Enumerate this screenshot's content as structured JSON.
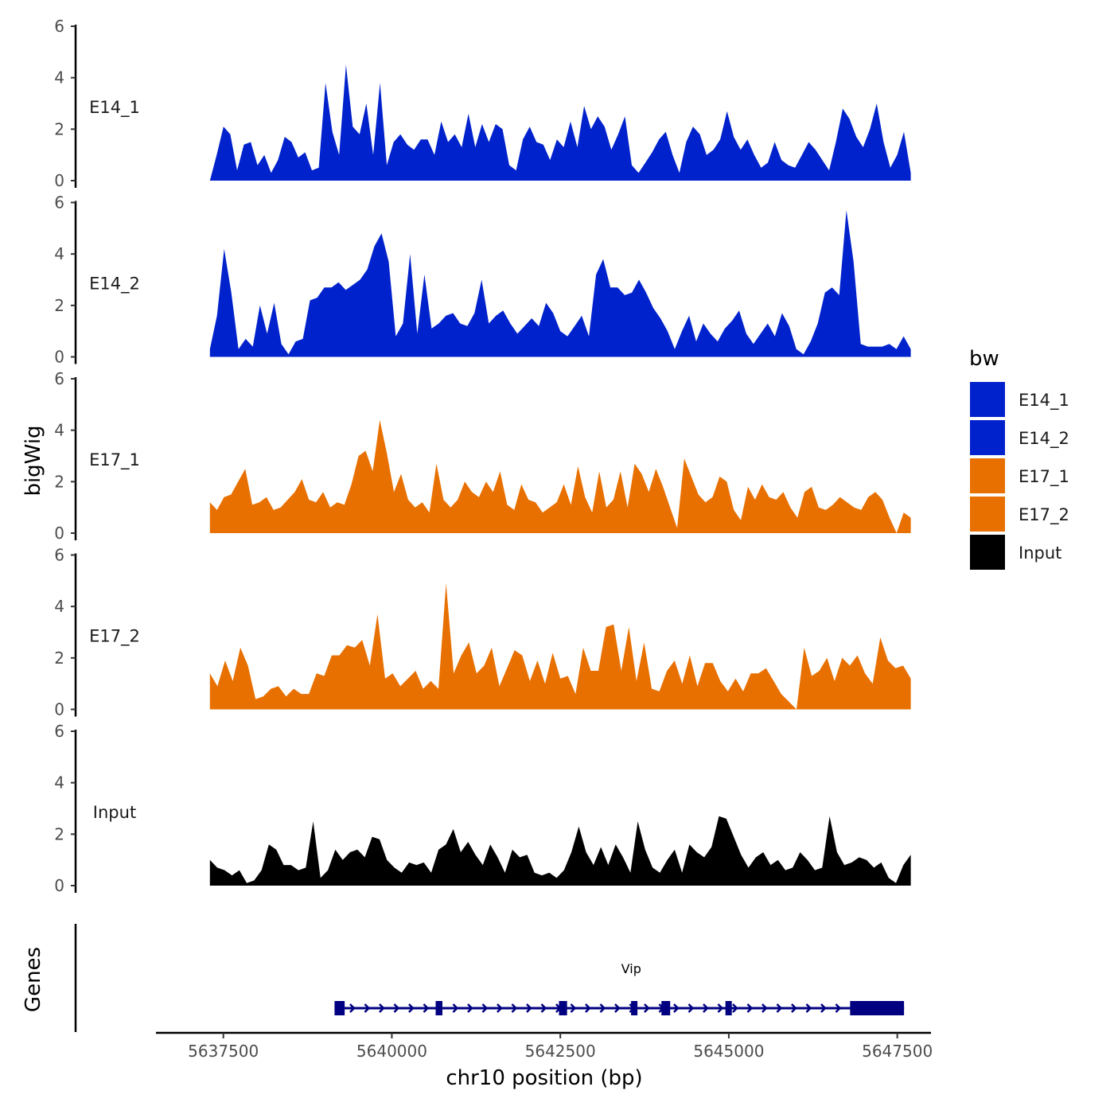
{
  "chart_data": {
    "type": "area",
    "chromosome": "chr10",
    "xlabel": "chr10 position (bp)",
    "xlim": [
      5636500,
      5648000
    ],
    "x_ticks": [
      5637500,
      5640000,
      5642500,
      5645000,
      5647500
    ],
    "x_tick_labels": [
      "5637500",
      "5640000",
      "5642500",
      "5645000",
      "5647500"
    ],
    "ylabel": "bigWig",
    "ylim": [
      0,
      6
    ],
    "y_ticks": [
      0,
      2,
      4,
      6
    ],
    "y_tick_labels": [
      "0",
      "2",
      "4",
      "6"
    ],
    "x_start": 5637300,
    "x_end": 5647700,
    "tracks": [
      {
        "name": "E14_1",
        "group": "E14_1",
        "color": "#0022CC",
        "values": [
          0.0,
          1.0,
          2.1,
          1.8,
          0.4,
          1.4,
          1.5,
          0.6,
          1.0,
          0.3,
          0.8,
          1.7,
          1.5,
          0.9,
          1.1,
          0.4,
          0.5,
          3.8,
          1.9,
          1.0,
          4.5,
          2.1,
          1.8,
          3.0,
          1.0,
          3.8,
          0.6,
          1.5,
          1.8,
          1.4,
          1.2,
          1.6,
          1.6,
          1.0,
          2.3,
          1.5,
          1.8,
          1.3,
          2.6,
          1.3,
          2.2,
          1.5,
          2.2,
          2.0,
          0.6,
          0.4,
          1.6,
          2.1,
          1.5,
          1.4,
          0.8,
          1.6,
          1.3,
          2.3,
          1.3,
          2.9,
          2.0,
          2.5,
          2.1,
          1.2,
          1.8,
          2.5,
          0.6,
          0.3,
          0.7,
          1.1,
          1.6,
          1.9,
          1.0,
          0.3,
          1.5,
          2.1,
          1.8,
          1.0,
          1.2,
          1.6,
          2.7,
          1.7,
          1.2,
          1.6,
          1.0,
          0.5,
          0.7,
          1.5,
          0.8,
          0.6,
          0.5,
          1.0,
          1.5,
          1.2,
          0.8,
          0.4,
          1.5,
          2.8,
          2.4,
          1.7,
          1.3,
          2.0,
          3.0,
          1.5,
          0.5,
          1.0,
          1.9,
          0.3
        ]
      },
      {
        "name": "E14_2",
        "group": "E14_2",
        "color": "#0022CC",
        "values": [
          0.3,
          1.6,
          4.2,
          2.5,
          0.3,
          0.7,
          0.4,
          2.0,
          0.9,
          2.1,
          0.5,
          0.1,
          0.6,
          0.7,
          2.2,
          2.3,
          2.7,
          2.7,
          2.9,
          2.6,
          2.8,
          3.0,
          3.4,
          4.3,
          4.8,
          3.7,
          0.8,
          1.3,
          4.0,
          0.9,
          3.2,
          1.1,
          1.3,
          1.6,
          1.7,
          1.3,
          1.2,
          1.7,
          3.0,
          1.3,
          1.6,
          1.8,
          1.3,
          0.9,
          1.2,
          1.5,
          1.2,
          2.1,
          1.7,
          1.0,
          0.8,
          1.2,
          1.6,
          0.8,
          3.2,
          3.8,
          2.7,
          2.7,
          2.4,
          2.5,
          3.0,
          2.5,
          1.9,
          1.5,
          1.0,
          0.3,
          1.0,
          1.6,
          0.6,
          1.3,
          0.9,
          0.6,
          1.1,
          1.4,
          1.8,
          0.9,
          0.5,
          0.9,
          1.3,
          0.8,
          1.7,
          1.2,
          0.3,
          0.1,
          0.6,
          1.3,
          2.5,
          2.7,
          2.4,
          5.7,
          3.7,
          0.5,
          0.4,
          0.4,
          0.4,
          0.5,
          0.3,
          0.8,
          0.3
        ]
      },
      {
        "name": "E17_1",
        "group": "E17_1",
        "color": "#E87000",
        "values": [
          1.2,
          0.9,
          1.4,
          1.5,
          2.0,
          2.5,
          1.1,
          1.2,
          1.4,
          0.9,
          1.0,
          1.3,
          1.6,
          2.1,
          1.3,
          1.2,
          1.6,
          1.0,
          1.2,
          1.1,
          1.9,
          3.0,
          3.2,
          2.4,
          4.4,
          3.1,
          1.6,
          2.3,
          1.3,
          1.0,
          1.2,
          0.8,
          2.7,
          1.3,
          1.0,
          1.3,
          2.0,
          1.6,
          1.4,
          2.0,
          1.6,
          2.4,
          1.1,
          0.9,
          1.9,
          1.3,
          1.2,
          0.8,
          1.0,
          1.2,
          1.9,
          1.1,
          2.6,
          1.4,
          0.8,
          2.4,
          1.0,
          1.3,
          2.4,
          1.0,
          2.7,
          2.3,
          1.6,
          2.5,
          1.8,
          1.0,
          0.2,
          2.9,
          2.2,
          1.5,
          1.2,
          1.4,
          2.2,
          2.0,
          0.9,
          0.5,
          1.8,
          1.3,
          1.9,
          1.4,
          1.3,
          1.6,
          1.0,
          0.6,
          1.6,
          1.8,
          1.0,
          0.9,
          1.1,
          1.4,
          1.2,
          1.0,
          0.9,
          1.4,
          1.6,
          1.3,
          0.6,
          0.0,
          0.8,
          0.6
        ]
      },
      {
        "name": "E17_2",
        "group": "E17_2",
        "color": "#E87000",
        "values": [
          1.4,
          0.9,
          1.9,
          1.1,
          2.4,
          1.7,
          0.4,
          0.5,
          0.8,
          0.9,
          0.5,
          0.8,
          0.6,
          0.6,
          1.4,
          1.3,
          2.1,
          2.1,
          2.5,
          2.4,
          2.7,
          1.7,
          3.7,
          1.2,
          1.4,
          0.9,
          1.2,
          1.5,
          0.8,
          1.1,
          0.8,
          4.9,
          1.4,
          2.1,
          2.6,
          1.4,
          1.7,
          2.4,
          0.9,
          1.6,
          2.3,
          2.1,
          1.1,
          1.9,
          1.0,
          2.2,
          1.2,
          1.3,
          0.6,
          2.4,
          1.5,
          1.5,
          3.2,
          3.3,
          1.5,
          3.2,
          1.1,
          2.6,
          0.8,
          0.7,
          1.5,
          1.9,
          1.0,
          2.1,
          0.9,
          1.8,
          1.8,
          1.1,
          0.7,
          1.2,
          0.7,
          1.4,
          1.4,
          1.6,
          1.1,
          0.6,
          0.3,
          0.0,
          2.4,
          1.3,
          1.5,
          2.0,
          1.1,
          2.0,
          1.7,
          2.1,
          1.4,
          1.0,
          2.8,
          1.9,
          1.6,
          1.7,
          1.2
        ]
      },
      {
        "name": "Input",
        "group": "Input",
        "color": "#000000",
        "values": [
          1.0,
          0.7,
          0.6,
          0.4,
          0.6,
          0.1,
          0.2,
          0.6,
          1.6,
          1.4,
          0.8,
          0.8,
          0.6,
          0.7,
          2.5,
          0.3,
          0.6,
          1.4,
          1.0,
          1.3,
          1.4,
          1.1,
          1.9,
          1.8,
          1.0,
          0.7,
          0.5,
          0.9,
          0.8,
          0.9,
          0.5,
          1.4,
          1.6,
          2.2,
          1.3,
          1.7,
          1.2,
          0.8,
          1.6,
          1.1,
          0.5,
          1.4,
          1.1,
          1.2,
          0.5,
          0.4,
          0.5,
          0.3,
          0.6,
          1.3,
          2.3,
          1.3,
          0.8,
          1.5,
          0.8,
          1.6,
          1.1,
          0.5,
          2.5,
          1.4,
          0.7,
          0.5,
          1.0,
          1.4,
          0.5,
          1.6,
          1.3,
          1.1,
          1.5,
          2.7,
          2.6,
          1.9,
          1.2,
          0.7,
          1.1,
          1.3,
          0.8,
          1.0,
          0.6,
          0.7,
          1.3,
          1.0,
          0.6,
          0.7,
          2.7,
          1.3,
          0.8,
          0.9,
          1.1,
          1.0,
          0.7,
          0.9,
          0.3,
          0.1,
          0.8,
          1.2
        ]
      }
    ],
    "legend": {
      "title": "bw",
      "position": "right",
      "entries": [
        {
          "label": "E14_1",
          "color": "#0022CC"
        },
        {
          "label": "E14_2",
          "color": "#0022CC"
        },
        {
          "label": "E17_1",
          "color": "#E87000"
        },
        {
          "label": "E17_2",
          "color": "#E87000"
        },
        {
          "label": "Input",
          "color": "#000000"
        }
      ]
    },
    "genes_panel": {
      "ylabel": "Genes",
      "gene": {
        "name": "Vip",
        "strand": "+",
        "color": "#000080",
        "start": 5639150,
        "end": 5647600,
        "exons": [
          [
            5639150,
            5639300
          ],
          [
            5640650,
            5640750
          ],
          [
            5642480,
            5642600
          ],
          [
            5643550,
            5643620
          ],
          [
            5644000,
            5644130
          ],
          [
            5644950,
            5645020
          ],
          [
            5646800,
            5647600
          ]
        ]
      }
    }
  }
}
